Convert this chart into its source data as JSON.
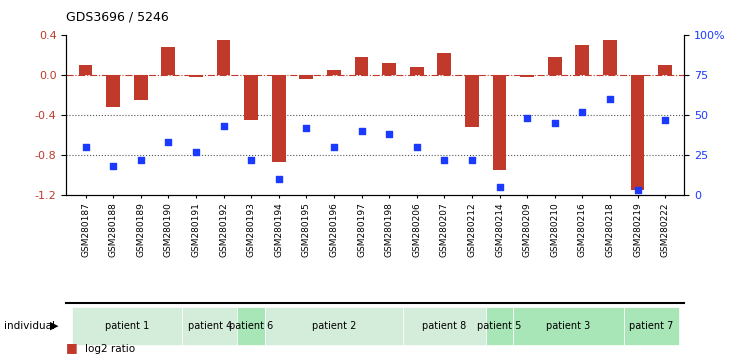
{
  "title": "GDS3696 / 5246",
  "samples": [
    "GSM280187",
    "GSM280188",
    "GSM280189",
    "GSM280190",
    "GSM280191",
    "GSM280192",
    "GSM280193",
    "GSM280194",
    "GSM280195",
    "GSM280196",
    "GSM280197",
    "GSM280198",
    "GSM280206",
    "GSM280207",
    "GSM280212",
    "GSM280214",
    "GSM280209",
    "GSM280210",
    "GSM280216",
    "GSM280218",
    "GSM280219",
    "GSM280222"
  ],
  "log2_ratio": [
    0.1,
    -0.32,
    -0.25,
    0.28,
    -0.02,
    0.35,
    -0.45,
    -0.87,
    -0.04,
    0.05,
    0.18,
    0.12,
    0.08,
    0.22,
    -0.52,
    -0.95,
    -0.02,
    0.18,
    0.3,
    0.35,
    -1.15,
    0.1
  ],
  "percentile": [
    30,
    18,
    22,
    33,
    27,
    43,
    22,
    10,
    42,
    30,
    40,
    38,
    30,
    22,
    22,
    5,
    48,
    45,
    52,
    60,
    3,
    47
  ],
  "patients": [
    {
      "label": "patient 1",
      "start": 0,
      "end": 4,
      "color": "#d4edda"
    },
    {
      "label": "patient 4",
      "start": 4,
      "end": 6,
      "color": "#d4edda"
    },
    {
      "label": "patient 6",
      "start": 6,
      "end": 7,
      "color": "#a8e6b8"
    },
    {
      "label": "patient 2",
      "start": 7,
      "end": 12,
      "color": "#d4edda"
    },
    {
      "label": "patient 8",
      "start": 12,
      "end": 15,
      "color": "#d4edda"
    },
    {
      "label": "patient 5",
      "start": 15,
      "end": 16,
      "color": "#a8e6b8"
    },
    {
      "label": "patient 3",
      "start": 16,
      "end": 20,
      "color": "#a8e6b8"
    },
    {
      "label": "patient 7",
      "start": 20,
      "end": 22,
      "color": "#a8e6b8"
    }
  ],
  "bar_color": "#c0392b",
  "dot_color": "#1a3aff",
  "hline_color": "#c0392b",
  "hline_style": "-.",
  "dotline_color": "#555555",
  "ylim_left": [
    -1.2,
    0.4
  ],
  "ylim_right": [
    0,
    100
  ],
  "yticks_left": [
    -1.2,
    -0.8,
    -0.4,
    0.0,
    0.4
  ],
  "yticks_right": [
    0,
    25,
    50,
    75,
    100
  ],
  "background_color": "#ffffff",
  "plot_bg_color": "#ffffff"
}
